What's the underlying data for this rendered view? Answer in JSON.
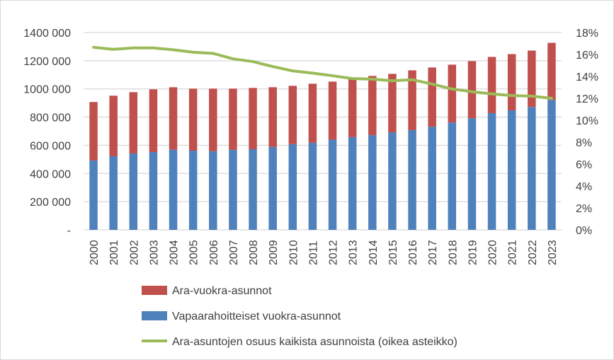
{
  "chart_data": {
    "type": "bar",
    "stacked": true,
    "categories": [
      "2000",
      "2001",
      "2002",
      "2003",
      "2004",
      "2005",
      "2006",
      "2007",
      "2008",
      "2009",
      "2010",
      "2011",
      "2012",
      "2013",
      "2014",
      "2015",
      "2016",
      "2017",
      "2018",
      "2019",
      "2020",
      "2021",
      "2022",
      "2023"
    ],
    "series": [
      {
        "name": "Vapaarahoitteiset vuokra-asunnot",
        "type": "bar",
        "axis": "left",
        "color": "#4f81bd",
        "values": [
          492000,
          522000,
          542000,
          552000,
          568000,
          562000,
          558000,
          568000,
          572000,
          588000,
          608000,
          618000,
          640000,
          658000,
          672000,
          692000,
          708000,
          732000,
          762000,
          792000,
          828000,
          848000,
          872000,
          922000
        ]
      },
      {
        "name": "Ara-vuokra-asunnot",
        "type": "bar",
        "axis": "left",
        "color": "#c0504d",
        "values": [
          415000,
          430000,
          435000,
          445000,
          444000,
          440000,
          444000,
          434000,
          435000,
          424000,
          414000,
          419000,
          412000,
          410000,
          420000,
          415000,
          424000,
          420000,
          410000,
          405000,
          399000,
          399000,
          400000,
          405000
        ]
      },
      {
        "name": "Ara-asuntojen osuus kaikista asunnoista (oikea asteikko)",
        "type": "line",
        "axis": "right",
        "color": "#9bbb59",
        "values": [
          16.65,
          16.47,
          16.6,
          16.6,
          16.43,
          16.2,
          16.1,
          15.6,
          15.35,
          14.9,
          14.5,
          14.3,
          14.06,
          13.8,
          13.75,
          13.6,
          13.7,
          13.3,
          12.85,
          12.6,
          12.4,
          12.25,
          12.2,
          12.0
        ]
      }
    ],
    "y_left": {
      "range": [
        0,
        1400000
      ],
      "ticks": [
        "-",
        "200 000",
        "400 000",
        "600 000",
        "800 000",
        "1000 000",
        "1200 000",
        "1400 000"
      ]
    },
    "y_right": {
      "range": [
        0,
        18
      ],
      "ticks": [
        "0%",
        "2%",
        "4%",
        "6%",
        "8%",
        "10%",
        "12%",
        "14%",
        "16%",
        "18%"
      ]
    },
    "grid": true,
    "gridColor": "#d9d9d9",
    "legend_position": "bottom",
    "legend": [
      "Ara-vuokra-asunnot",
      "Vapaarahoitteiset vuokra-asunnot",
      "Ara-asuntojen osuus kaikista asunnoista (oikea asteikko)"
    ]
  }
}
